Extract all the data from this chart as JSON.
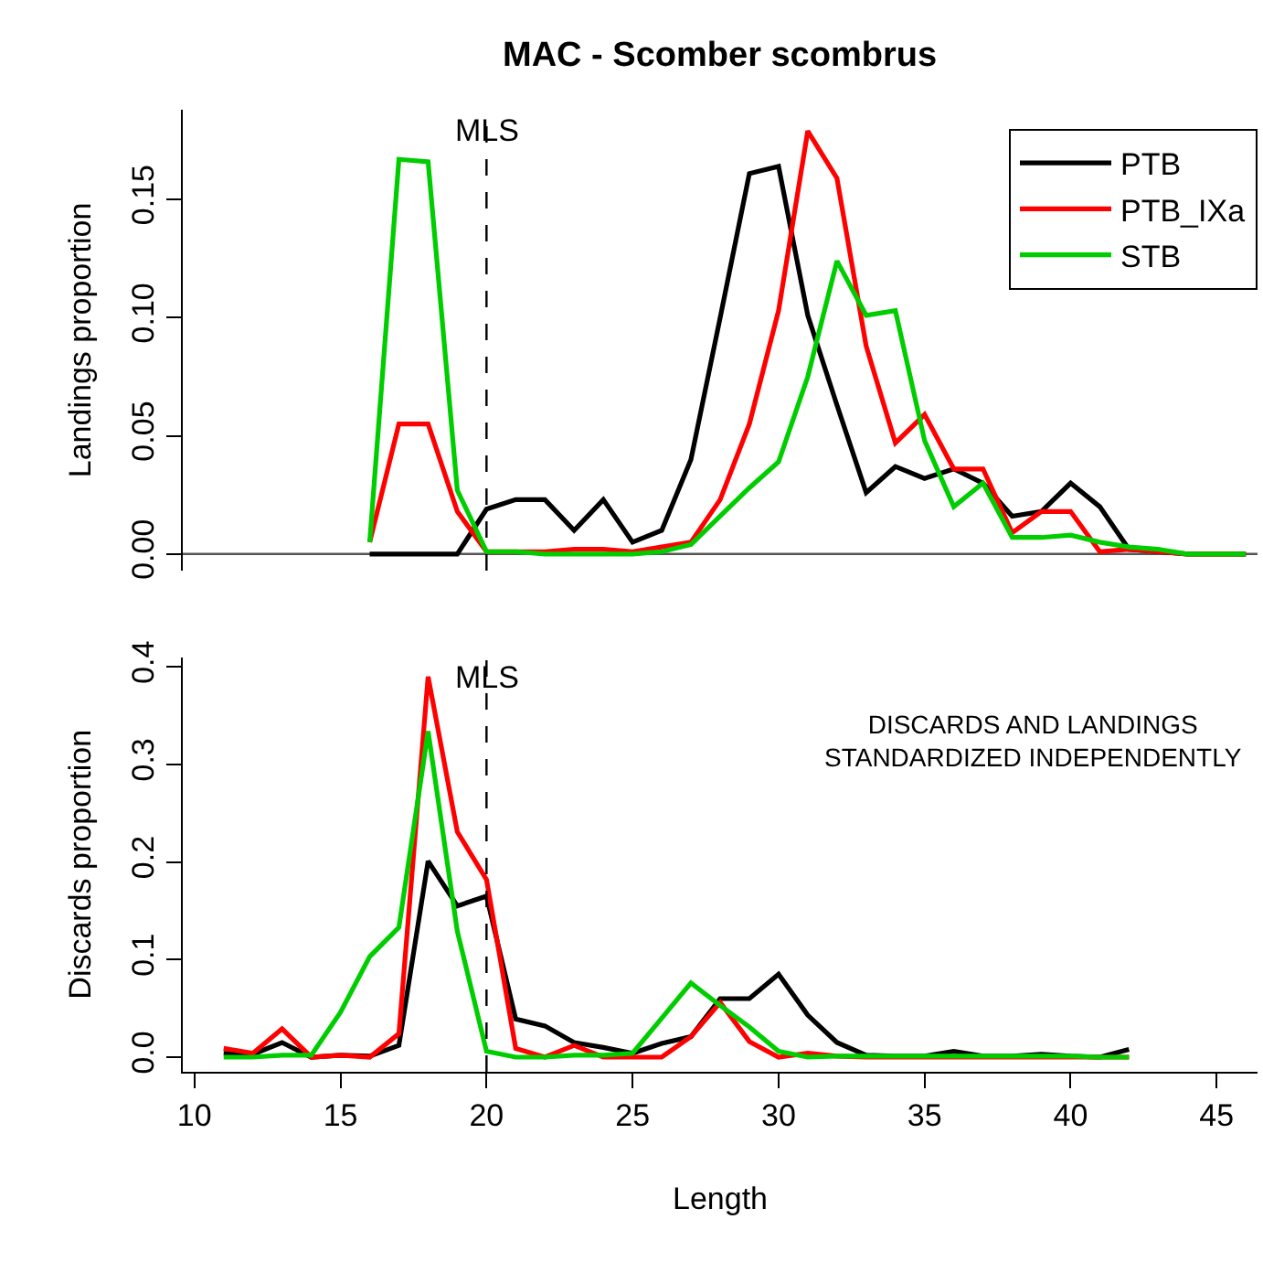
{
  "chart_data": [
    {
      "type": "line",
      "title": "MAC - Scomber scombrus",
      "ylabel": "Landings proportion",
      "xlim": [
        9.6,
        46.4
      ],
      "ylim": [
        -0.007,
        0.188
      ],
      "yticks": [
        {
          "value": 0,
          "label": "0.00"
        },
        {
          "value": 0.05,
          "label": "0.05"
        },
        {
          "value": 0.1,
          "label": "0.10"
        },
        {
          "value": 0.15,
          "label": "0.15"
        }
      ],
      "tick_labels": "y",
      "grid": false,
      "legend": "top right",
      "line_style": "solid",
      "marker": "none",
      "ref_lines": [
        {
          "axis": "x",
          "value": 20,
          "label": "MLS",
          "color": "#000000",
          "line_style": "dashed"
        },
        {
          "axis": "y",
          "value": 0,
          "color": "#555555",
          "line_style": "solid"
        }
      ],
      "x": [
        16,
        17,
        18,
        19,
        20,
        21,
        22,
        23,
        24,
        25,
        26,
        27,
        28,
        29,
        30,
        31,
        32,
        33,
        34,
        35,
        36,
        37,
        38,
        39,
        40,
        41,
        42,
        43,
        44,
        45,
        46
      ],
      "series": [
        {
          "name": "PTB",
          "color": "#000000",
          "values": [
            0,
            0,
            0,
            0,
            0.019,
            0.023,
            0.023,
            0.01,
            0.023,
            0.005,
            0.01,
            0.04,
            0.1,
            0.161,
            0.164,
            0.101,
            0.063,
            0.026,
            0.037,
            0.032,
            0.036,
            0.03,
            0.016,
            0.018,
            0.03,
            0.02,
            0.002,
            0.001,
            0,
            0,
            0
          ]
        },
        {
          "name": "PTB_IXa",
          "color": "#ff0000",
          "values": [
            0.005,
            0.055,
            0.055,
            0.018,
            0.001,
            0.001,
            0.001,
            0.002,
            0.002,
            0.001,
            0.003,
            0.005,
            0.023,
            0.055,
            0.103,
            0.179,
            0.159,
            0.088,
            0.047,
            0.059,
            0.036,
            0.036,
            0.009,
            0.018,
            0.018,
            0.001,
            0.002,
            0.001,
            0,
            0,
            0
          ]
        },
        {
          "name": "STB",
          "color": "#00cd00",
          "values": [
            0.005,
            0.167,
            0.166,
            0.027,
            0.001,
            0.001,
            0,
            0,
            0,
            0,
            0.001,
            0.004,
            0.016,
            0.028,
            0.039,
            0.075,
            0.124,
            0.101,
            0.103,
            0.048,
            0.02,
            0.03,
            0.007,
            0.007,
            0.008,
            0.005,
            0.003,
            0.002,
            0,
            0,
            0
          ]
        }
      ]
    },
    {
      "type": "line",
      "xlabel": "Length",
      "ylabel": "Discards proportion",
      "xlim": [
        9.6,
        46.4
      ],
      "xticks": [
        10,
        15,
        20,
        25,
        30,
        35,
        40,
        45
      ],
      "ylim": [
        -0.015,
        0.41
      ],
      "yticks": [
        {
          "value": 0,
          "label": "0.0"
        },
        0.1,
        0.2,
        0.3,
        0.4
      ],
      "grid": false,
      "line_style": "solid",
      "marker": "none",
      "annotations": [
        "DISCARDS AND LANDINGS\nSTANDARDIZED INDEPENDENTLY"
      ],
      "ref_lines": [
        {
          "axis": "x",
          "value": 20,
          "label": "MLS",
          "color": "#000000",
          "line_style": "dashed"
        }
      ],
      "x": [
        11,
        12,
        13,
        14,
        15,
        16,
        17,
        18,
        19,
        20,
        21,
        22,
        23,
        24,
        25,
        26,
        27,
        28,
        29,
        30,
        31,
        32,
        33,
        34,
        35,
        36,
        37,
        38,
        39,
        40,
        41,
        42
      ],
      "series": [
        {
          "color": "#000000",
          "values": [
            0.004,
            0.003,
            0.015,
            0,
            0.002,
            0.001,
            0.012,
            0.201,
            0.155,
            0.165,
            0.039,
            0.032,
            0.015,
            0.01,
            0.004,
            0.014,
            0.021,
            0.06,
            0.06,
            0.085,
            0.043,
            0.015,
            0.002,
            0.001,
            0.001,
            0.006,
            0.001,
            0.001,
            0.003,
            0.001,
            0,
            0.008
          ]
        },
        {
          "color": "#ff0000",
          "values": [
            0.009,
            0.004,
            0.029,
            0,
            0.002,
            0,
            0.024,
            0.39,
            0.231,
            0.182,
            0.009,
            0,
            0.012,
            0,
            0,
            0,
            0.021,
            0.056,
            0.016,
            0,
            0.004,
            0.001,
            0,
            0,
            0,
            0,
            0,
            0,
            0,
            0,
            0,
            0
          ]
        },
        {
          "color": "#00cd00",
          "values": [
            0,
            0,
            0.002,
            0.002,
            0.046,
            0.103,
            0.133,
            0.334,
            0.129,
            0.006,
            0,
            0,
            0.002,
            0.002,
            0.004,
            0.04,
            0.076,
            0.053,
            0.031,
            0.006,
            0,
            0.001,
            0.001,
            0.001,
            0.001,
            0.001,
            0.001,
            0.001,
            0.001,
            0.001,
            0,
            0
          ]
        }
      ]
    }
  ]
}
